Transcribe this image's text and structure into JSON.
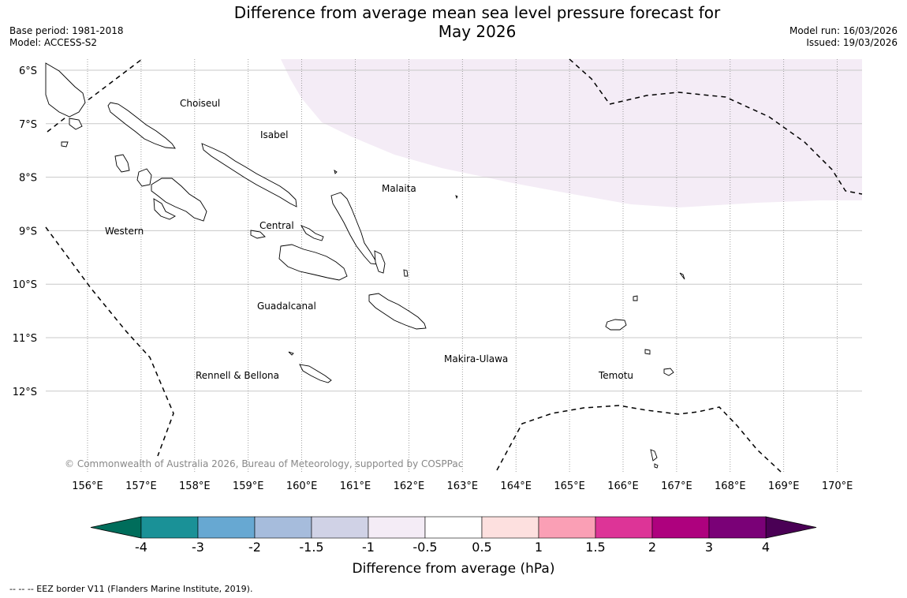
{
  "title": {
    "line1": "Difference from average mean sea level pressure forecast for",
    "line2": "May 2026"
  },
  "meta": {
    "base_period": "Base period: 1981-2018",
    "model": "Model: ACCESS-S2",
    "model_run": "Model run: 16/03/2026",
    "issued": "Issued: 19/03/2026"
  },
  "map": {
    "lat_labels": [
      "6°S",
      "7°S",
      "8°S",
      "9°S",
      "10°S",
      "11°S",
      "12°S"
    ],
    "lon_labels": [
      "156°E",
      "157°E",
      "158°E",
      "159°E",
      "160°E",
      "161°E",
      "162°E",
      "163°E",
      "164°E",
      "165°E",
      "166°E",
      "167°E",
      "168°E",
      "169°E",
      "170°E"
    ],
    "region_labels": {
      "choiseul": "Choiseul",
      "isabel": "Isabel",
      "malaita": "Malaita",
      "western": "Western",
      "central": "Central",
      "guadalcanal": "Guadalcanal",
      "makira": "Makira-Ulawa",
      "rennell": "Rennell & Bellona",
      "temotu": "Temotu"
    },
    "copyright": "© Commonwealth of Australia 2026, Bureau of Meteorology, supported by COSPPac",
    "anomaly_shading": {
      "class": "-1 to -0.5",
      "color": "#f4ecf6",
      "note": "north-east of map"
    }
  },
  "legend": {
    "label": "Difference from average (hPa)",
    "ticks": [
      "-4",
      "-3",
      "-2",
      "-1.5",
      "-1",
      "-0.5",
      "0.5",
      "1",
      "1.5",
      "2",
      "3",
      "4"
    ],
    "under_color": "#006d5b",
    "over_color": "#4a0055",
    "colors": [
      "#1a9197",
      "#67a8d2",
      "#a6bcdc",
      "#d0d2e6",
      "#f4ecf6",
      "#ffffff",
      "#fde0df",
      "#fa9fb5",
      "#dd3497",
      "#ae017e",
      "#7a0177"
    ]
  },
  "footer": {
    "eez": "--  --  -- EEZ border V11 (Flanders Marine Institute, 2019)."
  }
}
